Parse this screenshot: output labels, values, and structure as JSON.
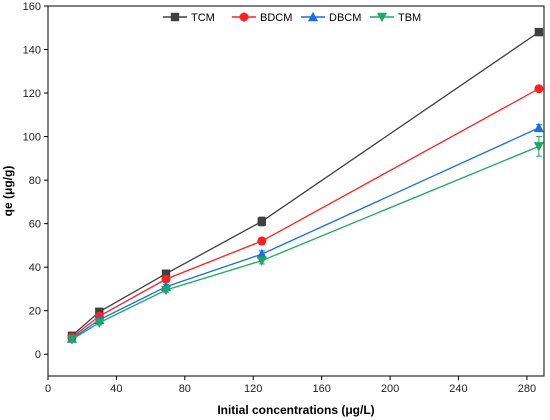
{
  "chart_data": {
    "type": "line",
    "xlabel": "Initial concentrations (μg/L)",
    "ylabel": "qe (μg/g)",
    "xlim": [
      0,
      290
    ],
    "ylim": [
      -10,
      160
    ],
    "xticks": [
      0,
      40,
      80,
      120,
      160,
      200,
      240,
      280
    ],
    "yticks": [
      0,
      20,
      40,
      60,
      80,
      100,
      120,
      140,
      160
    ],
    "grid": false,
    "legend_position": "top-center",
    "x": [
      14,
      30,
      69,
      125,
      287
    ],
    "series": [
      {
        "name": "TCM",
        "marker": "square",
        "color": "#404040",
        "values": [
          8.5,
          19.5,
          37,
          61,
          148
        ],
        "errors": [
          1.0,
          1.2,
          1.0,
          2.0,
          1.0
        ]
      },
      {
        "name": "BDCM",
        "marker": "circle",
        "color": "#ff2020",
        "values": [
          7.8,
          17.5,
          34.5,
          52,
          122
        ],
        "errors": [
          0.8,
          1.0,
          1.0,
          1.5,
          1.0
        ]
      },
      {
        "name": "DBCM",
        "marker": "triangle-up",
        "color": "#1a6fe0",
        "values": [
          7.2,
          15.8,
          31,
          46,
          104
        ],
        "errors": [
          0.8,
          1.0,
          1.0,
          1.5,
          1.5
        ]
      },
      {
        "name": "TBM",
        "marker": "triangle-down",
        "color": "#1aaa60",
        "values": [
          6.8,
          14.5,
          29.5,
          43,
          95.5
        ],
        "errors": [
          0.8,
          1.0,
          1.0,
          1.5,
          4.5
        ]
      }
    ]
  }
}
